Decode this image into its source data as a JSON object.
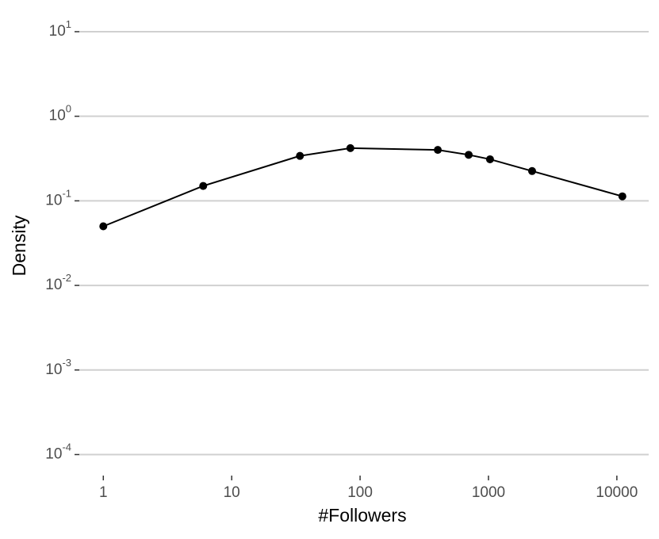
{
  "chart_data": {
    "type": "line",
    "x_label": "#Followers",
    "y_label": "Density",
    "x": [
      1,
      6,
      34,
      84,
      403,
      701,
      1028,
      2186,
      11040
    ],
    "series": [
      {
        "color": "#000000",
        "values": [
          0.05,
          0.15,
          0.34,
          0.42,
          0.4,
          0.35,
          0.31,
          0.225,
          0.113
        ]
      }
    ],
    "x_log": true,
    "y_log": true,
    "xlim": [
      0.65,
      17700
    ],
    "ylim": [
      7e-05,
      12.4
    ],
    "xticks": [
      1,
      10,
      100,
      1000,
      10000
    ],
    "yticks": [
      {
        "value": 0.0001,
        "label": "10^-4"
      },
      {
        "value": 0.001,
        "label": "10^-3"
      },
      {
        "value": 0.01,
        "label": "10^-2"
      },
      {
        "value": 0.1,
        "label": "10^-1"
      },
      {
        "value": 1,
        "label": "10^0"
      },
      {
        "value": 10,
        "label": "10^1"
      }
    ],
    "grid": true
  }
}
